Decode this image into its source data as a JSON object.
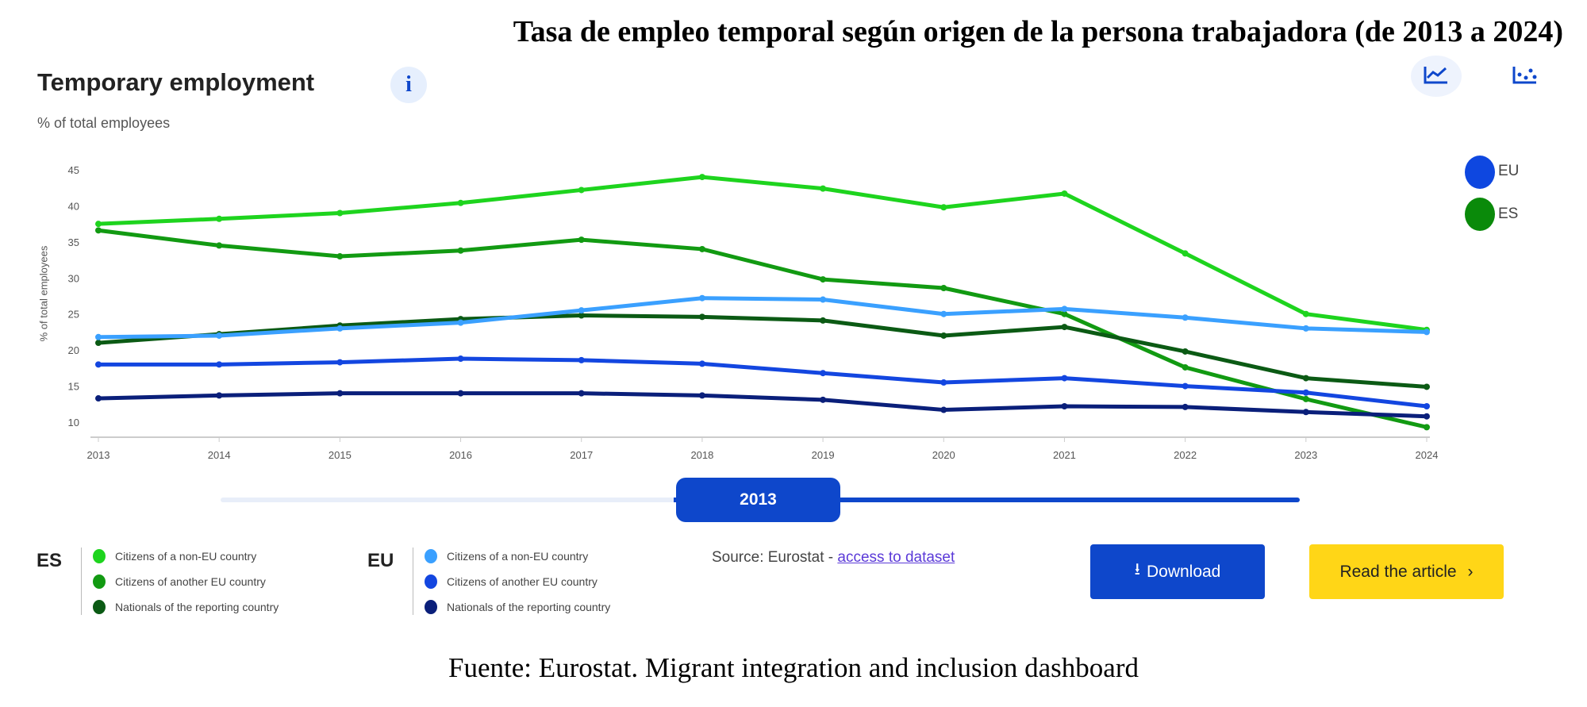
{
  "page_title": "Tasa de empleo temporal según origen de la persona trabajadora (de 2013 a 2024)",
  "widget": {
    "title": "Temporary employment",
    "info_icon": "i",
    "subtitle": "% of total employees",
    "tools": [
      "line-chart-icon",
      "scatter-chart-icon"
    ],
    "slider_value": "2013",
    "source_prefix": "Source: Eurostat - ",
    "source_link": "access to dataset",
    "download_label": "Download",
    "read_label": "Read the article",
    "read_chevron": "›"
  },
  "footer": "Fuente: Eurostat. Migrant integration and inclusion dashboard",
  "chart_data": {
    "type": "line",
    "ylabel": "% of total employees",
    "x": [
      "2013",
      "2014",
      "2015",
      "2016",
      "2017",
      "2018",
      "2019",
      "2020",
      "2021",
      "2022",
      "2023",
      "2024"
    ],
    "ylim": [
      8,
      46
    ],
    "yticks": [
      10,
      15,
      20,
      25,
      30,
      35,
      40,
      45
    ],
    "grid": false,
    "legend_top": [
      {
        "name": "EU",
        "color": "#0e47e0"
      },
      {
        "name": "ES",
        "color": "#0a8a0a"
      }
    ],
    "legend_groups": [
      {
        "group": "ES",
        "items": [
          {
            "name": "Citizens of a non-EU country",
            "color": "#1ed41e"
          },
          {
            "name": "Citizens of another EU country",
            "color": "#129a12"
          },
          {
            "name": "Nationals of the reporting country",
            "color": "#0b5a14"
          }
        ]
      },
      {
        "group": "EU",
        "items": [
          {
            "name": "Citizens of a non-EU country",
            "color": "#3aa0ff"
          },
          {
            "name": "Citizens of another EU country",
            "color": "#1346e0"
          },
          {
            "name": "Nationals of the reporting country",
            "color": "#0a1f7a"
          }
        ]
      }
    ],
    "series": [
      {
        "group": "ES",
        "name": "Citizens of a non-EU country",
        "color": "#1ed41e",
        "values": [
          37.5,
          38.2,
          39.0,
          40.4,
          42.2,
          44.0,
          42.4,
          39.8,
          41.7,
          33.4,
          25.0,
          22.8
        ]
      },
      {
        "group": "ES",
        "name": "Citizens of another EU country",
        "color": "#129a12",
        "values": [
          36.6,
          34.5,
          33.0,
          33.8,
          35.3,
          34.0,
          29.8,
          28.6,
          25.0,
          17.6,
          13.2,
          9.3
        ]
      },
      {
        "group": "ES",
        "name": "Nationals of the reporting country",
        "color": "#0b5a14",
        "values": [
          21.0,
          22.2,
          23.4,
          24.3,
          24.8,
          24.6,
          24.1,
          22.0,
          23.2,
          19.8,
          16.1,
          14.9
        ]
      },
      {
        "group": "EU",
        "name": "Citizens of a non-EU country",
        "color": "#3aa0ff",
        "values": [
          21.8,
          22.0,
          23.0,
          23.8,
          25.5,
          27.2,
          27.0,
          25.0,
          25.7,
          24.5,
          23.0,
          22.5
        ]
      },
      {
        "group": "EU",
        "name": "Citizens of another EU country",
        "color": "#1346e0",
        "values": [
          18.0,
          18.0,
          18.3,
          18.8,
          18.6,
          18.1,
          16.8,
          15.5,
          16.1,
          15.0,
          14.1,
          12.2
        ]
      },
      {
        "group": "EU",
        "name": "Nationals of the reporting country",
        "color": "#0a1f7a",
        "values": [
          13.3,
          13.7,
          14.0,
          14.0,
          14.0,
          13.7,
          13.1,
          11.7,
          12.2,
          12.1,
          11.4,
          10.8
        ]
      }
    ]
  }
}
